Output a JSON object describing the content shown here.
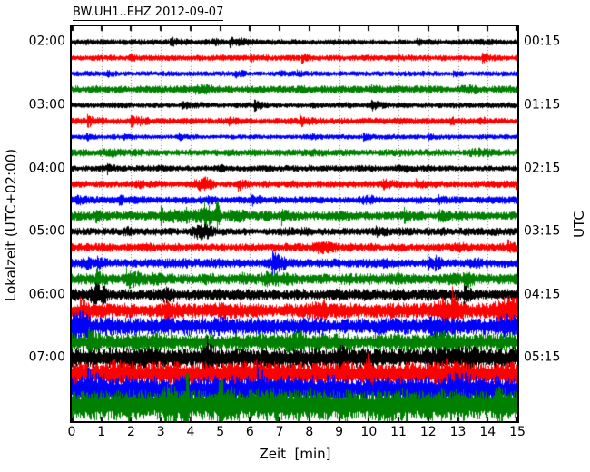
{
  "title": "BW.UH1..EHZ 2012-09-07",
  "axes": {
    "xlabel": "Zeit  [min]",
    "ylabel_left": "Lokalzeit (UTC+02:00)",
    "ylabel_right": "UTC",
    "x_tick_labels": [
      "0",
      "1",
      "2",
      "3",
      "4",
      "5",
      "6",
      "7",
      "8",
      "9",
      "10",
      "11",
      "12",
      "13",
      "14",
      "15"
    ]
  },
  "palette": {
    "black": "#000000",
    "red": "#ff0000",
    "blue": "#0000ff",
    "green": "#008000",
    "grid": "#777777",
    "axis": "#000000",
    "background": "#ffffff"
  },
  "chart_data": {
    "type": "line",
    "subtype": "helicorder-dayplot-seismogram",
    "title": "BW.UH1..EHZ 2012-09-07",
    "station_id": "BW.UH1..EHZ",
    "date": "2012-09-07",
    "xlabel": "Zeit  [min]",
    "ylabel_left": "Lokalzeit (UTC+02:00)",
    "ylabel_right": "UTC",
    "x_range_min": [
      0,
      15
    ],
    "minutes_per_line": 15,
    "grid": "vertical dotted line at every minute",
    "legend": "none",
    "color_cycle": [
      "black",
      "red",
      "blue",
      "green"
    ],
    "traces": [
      {
        "start_local": "02:00",
        "left_label": "02:00",
        "right_label": "00:15",
        "color": "black",
        "amp": 2.2,
        "bursts": []
      },
      {
        "start_local": "02:15",
        "left_label": "",
        "right_label": "",
        "color": "red",
        "amp": 2.3,
        "bursts": [
          [
            2.0,
            0.3,
            1.25
          ],
          [
            6.5,
            0.3,
            1.2
          ]
        ]
      },
      {
        "start_local": "02:30",
        "left_label": "",
        "right_label": "",
        "color": "blue",
        "amp": 2.0,
        "bursts": [
          [
            9.0,
            0.3,
            1.2
          ]
        ]
      },
      {
        "start_local": "02:45",
        "left_label": "",
        "right_label": "",
        "color": "green",
        "amp": 3.0,
        "bursts": [
          [
            0.8,
            0.4,
            1.3
          ],
          [
            4.6,
            0.5,
            1.35
          ],
          [
            13.3,
            0.6,
            1.3
          ]
        ]
      },
      {
        "start_local": "03:00",
        "left_label": "03:00",
        "right_label": "01:15",
        "color": "black",
        "amp": 2.2,
        "bursts": [
          [
            8.2,
            0.4,
            1.25
          ]
        ]
      },
      {
        "start_local": "03:15",
        "left_label": "",
        "right_label": "",
        "color": "red",
        "amp": 2.5,
        "bursts": [
          [
            2.4,
            0.4,
            1.35
          ],
          [
            5.8,
            0.3,
            1.2
          ]
        ]
      },
      {
        "start_local": "03:30",
        "left_label": "",
        "right_label": "",
        "color": "blue",
        "amp": 1.8,
        "bursts": []
      },
      {
        "start_local": "03:45",
        "left_label": "",
        "right_label": "",
        "color": "green",
        "amp": 2.8,
        "bursts": [
          [
            1.2,
            0.6,
            1.4
          ],
          [
            13.8,
            0.7,
            1.5
          ]
        ]
      },
      {
        "start_local": "04:00",
        "left_label": "04:00",
        "right_label": "02:15",
        "color": "black",
        "amp": 2.4,
        "bursts": [
          [
            5.0,
            0.4,
            1.3
          ],
          [
            11.0,
            0.4,
            1.2
          ]
        ]
      },
      {
        "start_local": "04:15",
        "left_label": "",
        "right_label": "",
        "color": "red",
        "amp": 2.7,
        "bursts": [
          [
            2.3,
            0.3,
            1.3
          ],
          [
            4.45,
            0.35,
            2.3
          ],
          [
            7.5,
            0.3,
            1.2
          ]
        ]
      },
      {
        "start_local": "04:30",
        "left_label": "",
        "right_label": "",
        "color": "blue",
        "amp": 2.8,
        "bursts": [
          [
            0.3,
            0.3,
            1.4
          ],
          [
            4.6,
            0.4,
            1.5
          ],
          [
            9.9,
            0.35,
            1.6
          ],
          [
            13.0,
            0.3,
            1.3
          ]
        ]
      },
      {
        "start_local": "04:45",
        "left_label": "",
        "right_label": "",
        "color": "green",
        "amp": 3.4,
        "bursts": [
          [
            3.6,
            0.4,
            1.7
          ],
          [
            4.5,
            0.4,
            2.0
          ],
          [
            4.9,
            0.06,
            3.8
          ],
          [
            5.5,
            0.4,
            1.7
          ],
          [
            9.0,
            0.5,
            1.2
          ]
        ]
      },
      {
        "start_local": "05:00",
        "left_label": "05:00",
        "right_label": "03:15",
        "color": "black",
        "amp": 3.0,
        "bursts": [
          [
            1.9,
            0.3,
            1.35
          ],
          [
            4.4,
            0.35,
            2.3
          ],
          [
            12.5,
            0.4,
            1.2
          ]
        ]
      },
      {
        "start_local": "05:15",
        "left_label": "",
        "right_label": "",
        "color": "red",
        "amp": 3.2,
        "bursts": [
          [
            2.5,
            0.4,
            1.3
          ],
          [
            8.5,
            0.5,
            1.6
          ],
          [
            13.0,
            0.5,
            1.3
          ]
        ]
      },
      {
        "start_local": "05:30",
        "left_label": "",
        "right_label": "",
        "color": "blue",
        "amp": 3.4,
        "bursts": [
          [
            0.5,
            0.3,
            1.3
          ],
          [
            7.0,
            0.6,
            1.6
          ],
          [
            10.5,
            0.4,
            1.4
          ],
          [
            13.6,
            0.4,
            1.4
          ]
        ]
      },
      {
        "start_local": "05:45",
        "left_label": "",
        "right_label": "",
        "color": "green",
        "amp": 4.2,
        "bursts": [
          [
            2.0,
            0.5,
            1.2
          ],
          [
            7.0,
            0.6,
            1.5
          ],
          [
            9.2,
            0.4,
            1.3
          ],
          [
            12.8,
            0.8,
            1.3
          ]
        ]
      },
      {
        "start_local": "06:00",
        "left_label": "06:00",
        "right_label": "04:15",
        "color": "black",
        "amp": 4.6,
        "bursts": [
          [
            0.9,
            0.35,
            1.9
          ],
          [
            3.2,
            0.4,
            1.4
          ],
          [
            7.5,
            0.7,
            1.2
          ],
          [
            11.0,
            0.6,
            1.2
          ]
        ]
      },
      {
        "start_local": "06:15",
        "left_label": "",
        "right_label": "",
        "color": "red",
        "amp": 5.6,
        "bursts": [
          [
            5.0,
            0.5,
            1.2
          ],
          [
            8.3,
            0.5,
            1.5
          ],
          [
            12.6,
            0.45,
            1.9
          ],
          [
            14.7,
            0.5,
            2.0
          ]
        ]
      },
      {
        "start_local": "06:30",
        "left_label": "",
        "right_label": "",
        "color": "blue",
        "amp": 6.6,
        "bursts": [
          [
            0.25,
            0.35,
            2.0
          ],
          [
            5.0,
            0.5,
            1.3
          ],
          [
            12.4,
            0.4,
            1.6
          ],
          [
            14.6,
            0.4,
            1.7
          ]
        ]
      },
      {
        "start_local": "06:45",
        "left_label": "",
        "right_label": "",
        "color": "green",
        "amp": 6.6,
        "bursts": [
          [
            3.0,
            0.6,
            1.3
          ],
          [
            7.5,
            0.6,
            1.25
          ],
          [
            12.5,
            0.7,
            1.4
          ]
        ]
      },
      {
        "start_local": "07:00",
        "left_label": "07:00",
        "right_label": "05:15",
        "color": "black",
        "amp": 8.0,
        "bursts": [
          [
            4.5,
            0.5,
            1.25
          ],
          [
            9.0,
            0.6,
            1.2
          ],
          [
            13.5,
            0.5,
            1.2
          ]
        ]
      },
      {
        "start_local": "07:15",
        "left_label": "",
        "right_label": "",
        "color": "red",
        "amp": 9.0,
        "bursts": [
          [
            1.5,
            0.5,
            1.3
          ],
          [
            4.5,
            0.5,
            1.2
          ],
          [
            12.8,
            0.6,
            1.35
          ]
        ]
      },
      {
        "start_local": "07:30",
        "left_label": "",
        "right_label": "",
        "color": "blue",
        "amp": 10.5,
        "bursts": [
          [
            1.0,
            0.5,
            1.3
          ],
          [
            6.0,
            0.5,
            1.15
          ],
          [
            13.0,
            0.7,
            1.3
          ]
        ]
      },
      {
        "start_local": "07:45",
        "left_label": "",
        "right_label": "",
        "color": "green",
        "amp": 12.0,
        "bursts": [
          [
            3.3,
            0.4,
            1.4
          ],
          [
            3.85,
            0.1,
            2.3
          ],
          [
            5.0,
            0.12,
            2.0
          ],
          [
            10.5,
            0.5,
            1.3
          ],
          [
            14.5,
            0.4,
            1.3
          ]
        ]
      }
    ]
  }
}
